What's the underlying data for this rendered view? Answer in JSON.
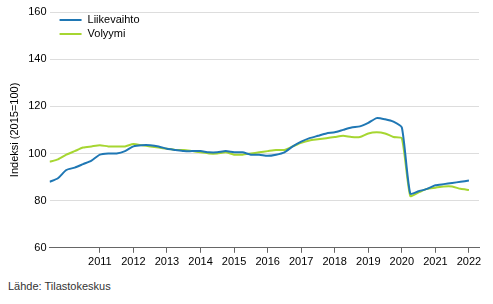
{
  "chart_data": {
    "type": "line",
    "y_label": "Indeksi (2015=100)",
    "source": "Lähde: Tilastokeskus",
    "x": [
      2009.5,
      2009.75,
      2010.0,
      2010.25,
      2010.5,
      2010.75,
      2011.0,
      2011.25,
      2011.5,
      2011.75,
      2012.0,
      2012.25,
      2012.5,
      2012.75,
      2013.0,
      2013.25,
      2013.5,
      2013.75,
      2014.0,
      2014.25,
      2014.5,
      2014.75,
      2015.0,
      2015.25,
      2015.5,
      2015.75,
      2016.0,
      2016.25,
      2016.5,
      2016.75,
      2017.0,
      2017.25,
      2017.5,
      2017.75,
      2018.0,
      2018.25,
      2018.5,
      2018.75,
      2019.0,
      2019.25,
      2019.5,
      2019.75,
      2020.0,
      2020.25,
      2020.5,
      2020.75,
      2021.0,
      2021.25,
      2021.5,
      2021.75,
      2022.0
    ],
    "series": [
      {
        "name": "Liikevaihto",
        "color": "#1f77b4",
        "values": [
          88,
          89.5,
          93,
          94,
          95.5,
          97,
          99.5,
          100,
          100,
          101,
          103,
          103.5,
          103.5,
          103,
          102,
          101.5,
          101,
          101,
          101,
          100.5,
          100.5,
          101,
          100.5,
          100.5,
          99.5,
          99.5,
          99,
          99.5,
          100.5,
          103,
          105,
          106.5,
          107.5,
          108.5,
          109,
          110,
          111,
          111.5,
          113,
          115,
          114.5,
          113.5,
          111,
          83,
          84,
          85,
          86.5,
          87,
          87.5,
          88,
          88.5
        ]
      },
      {
        "name": "Volyymi",
        "color": "#a6d631",
        "values": [
          96.5,
          97.5,
          99.5,
          101,
          102.5,
          103,
          103.5,
          103,
          103,
          103,
          104,
          103.5,
          103,
          102.5,
          102,
          101.5,
          101.5,
          101,
          100.5,
          100,
          100,
          100.5,
          99.5,
          99.5,
          100,
          100.5,
          101,
          101.5,
          101.5,
          103,
          104.5,
          105.5,
          106,
          106.5,
          107,
          107.5,
          107,
          107,
          108.5,
          109,
          108.5,
          107,
          106.5,
          82,
          83.5,
          85,
          85.5,
          86,
          86,
          85,
          84.5
        ]
      }
    ],
    "xlim": [
      2009.5,
      2022.3
    ],
    "xticks": [
      2011,
      2012,
      2013,
      2014,
      2015,
      2016,
      2017,
      2018,
      2019,
      2020,
      2021,
      2022
    ],
    "ylim": [
      60,
      160
    ],
    "yticks": [
      60,
      80,
      100,
      120,
      140,
      160
    ],
    "grid": true,
    "legend": "top-left"
  }
}
